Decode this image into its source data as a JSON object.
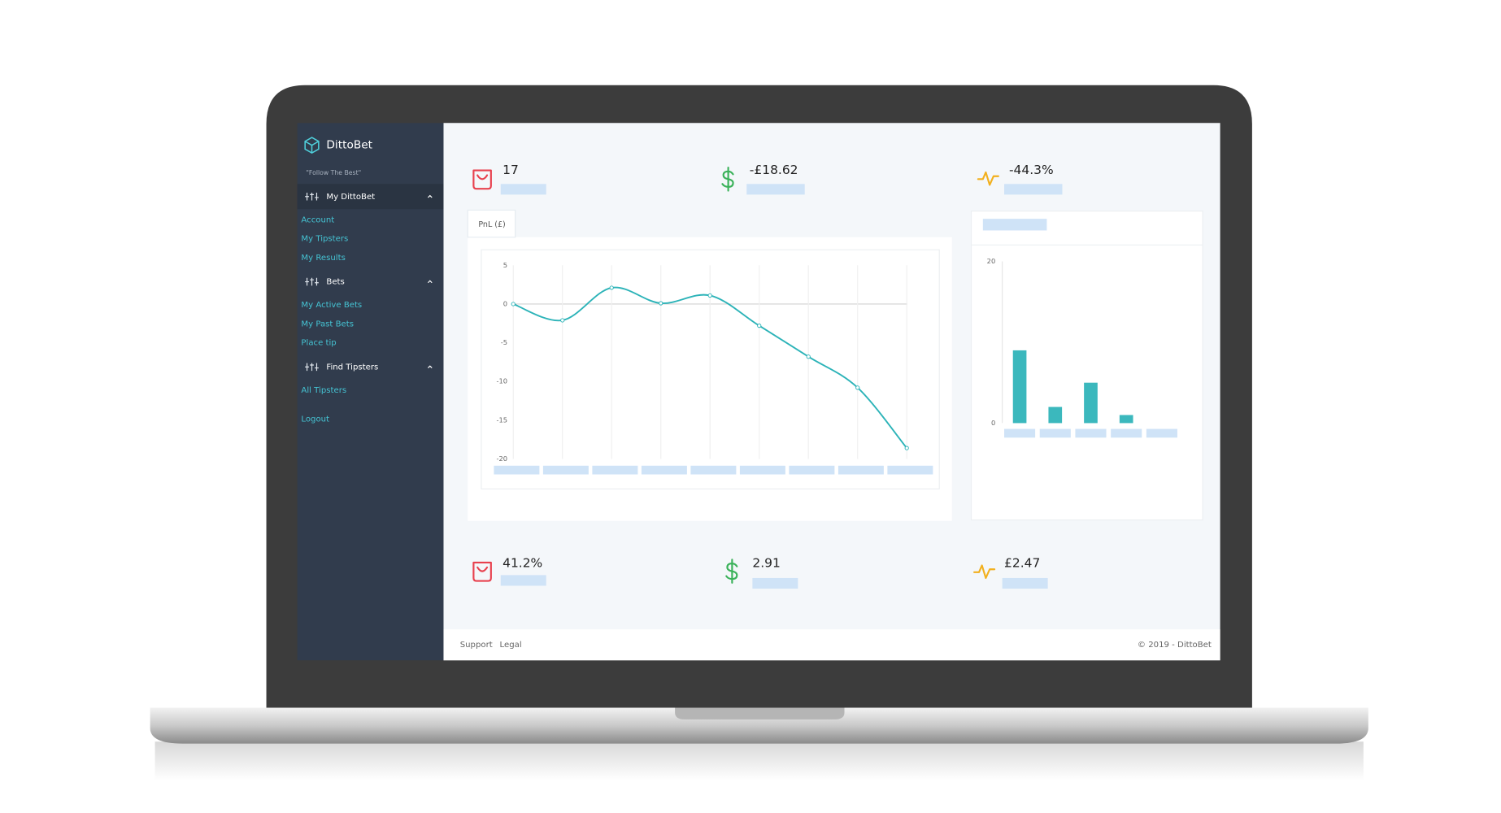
{
  "sidebar": {
    "brand": "DittoBet",
    "tagline": "\"Follow The Best\"",
    "sections": [
      {
        "title": "My DittoBet",
        "links": [
          "Account",
          "My Tipsters",
          "My Results"
        ]
      },
      {
        "title": "Bets",
        "links": [
          "My Active Bets",
          "My Past Bets",
          "Place tip"
        ]
      },
      {
        "title": "Find Tipsters",
        "links": [
          "All Tipsters"
        ]
      }
    ],
    "logout": "Logout"
  },
  "stats_top": [
    "17",
    "-£18.62",
    "-44.3%"
  ],
  "stats_bottom": [
    "41.2%",
    "2.91",
    "£2.47"
  ],
  "chart_data": [
    {
      "type": "line",
      "title": "PnL (£)",
      "categories": [
        null,
        null,
        null,
        null,
        null,
        null,
        null,
        null,
        null
      ],
      "values": [
        0,
        -2.1,
        2.1,
        0.1,
        1.1,
        -2.8,
        -6.8,
        -10.8,
        -18.6
      ],
      "color": "#2cb3b8",
      "ylim": [
        -20,
        5
      ],
      "yticks": [
        5,
        0,
        -5,
        -10,
        -15,
        -20
      ],
      "grid": true
    },
    {
      "type": "bar",
      "categories": [
        null,
        null,
        null,
        null,
        null
      ],
      "values": [
        9,
        2,
        5,
        1,
        0
      ],
      "color": "#3bb8bd",
      "ylim": [
        0,
        20
      ],
      "yticks": [
        20,
        0
      ],
      "grid": false
    }
  ],
  "footer": {
    "links": [
      "Support",
      "Legal"
    ],
    "copyright": "© 2019 - DittoBet"
  }
}
